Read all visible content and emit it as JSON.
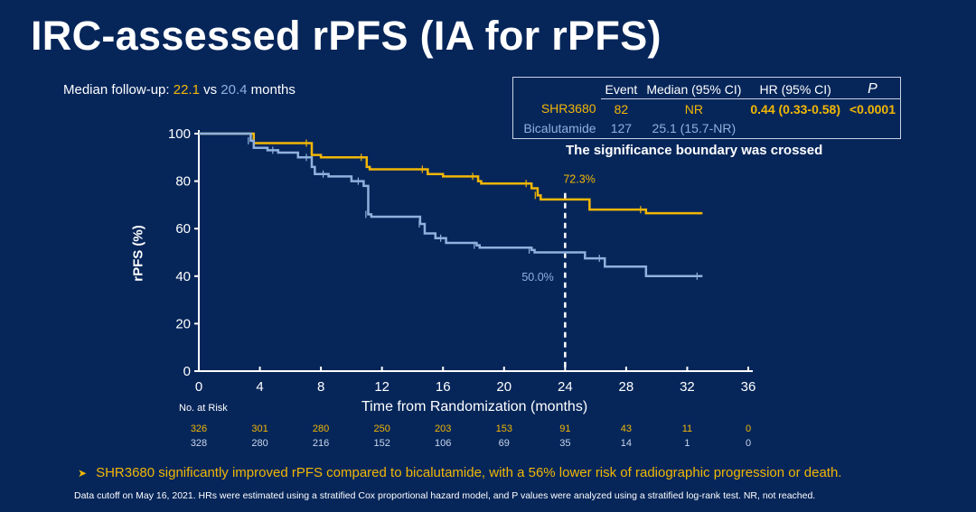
{
  "title": "IRC-assessed rPFS (IA for rPFS)",
  "followup": {
    "prefix": "Median follow-up:",
    "shr": "22.1",
    "vs": "vs",
    "bic": "20.4",
    "suffix": "months"
  },
  "table": {
    "headers": [
      "",
      "Event",
      "Median (95% CI)",
      "HR (95% CI)",
      "P"
    ],
    "rows": [
      {
        "arm": "SHR3680",
        "event": "82",
        "median": "NR",
        "hr": "0.44 (0.33-0.58)",
        "p": "<0.0001"
      },
      {
        "arm": "Bicalutamide",
        "event": "127",
        "median": "25.1 (15.7-NR)",
        "hr": "",
        "p": ""
      }
    ]
  },
  "boundary_note": "The significance boundary was crossed",
  "colors": {
    "background": "#06265a",
    "shr3680": "#f2b705",
    "bicalutamide": "#8fb1dd"
  },
  "chart_data": {
    "type": "line",
    "subtype": "kaplan-meier step",
    "xlabel": "Time from Randomization (months)",
    "ylabel": "rPFS (%)",
    "xlim": [
      0,
      36
    ],
    "ylim": [
      0,
      100
    ],
    "xticks": [
      "0",
      "4",
      "8",
      "12",
      "16",
      "20",
      "24",
      "28",
      "32",
      "36"
    ],
    "yticks": [
      "0",
      "20",
      "40",
      "60",
      "80",
      "100"
    ],
    "grid": false,
    "reference_line": {
      "x": 24,
      "style": "dashed"
    },
    "annotations": [
      {
        "text": "72.3%",
        "series": "SHR3680"
      },
      {
        "text": "50.0%",
        "series": "Bicalutamide"
      }
    ],
    "series": [
      {
        "name": "SHR3680",
        "steps": [
          [
            0,
            100
          ],
          [
            3.6,
            96
          ],
          [
            7.4,
            91
          ],
          [
            8,
            90
          ],
          [
            11,
            86
          ],
          [
            11.2,
            85
          ],
          [
            15,
            83
          ],
          [
            16,
            82
          ],
          [
            18.3,
            80
          ],
          [
            18.5,
            79
          ],
          [
            21.8,
            77
          ],
          [
            22.2,
            74
          ],
          [
            22.4,
            72.3
          ],
          [
            25.6,
            68
          ],
          [
            29.3,
            66.5
          ],
          [
            33,
            66.5
          ]
        ]
      },
      {
        "name": "Bicalutamide",
        "steps": [
          [
            0,
            100
          ],
          [
            3.4,
            97
          ],
          [
            3.6,
            94
          ],
          [
            4.5,
            93
          ],
          [
            5.2,
            92
          ],
          [
            6.5,
            90
          ],
          [
            7.4,
            86
          ],
          [
            7.6,
            83
          ],
          [
            8.5,
            82
          ],
          [
            10,
            80
          ],
          [
            10.8,
            78
          ],
          [
            11.1,
            66
          ],
          [
            11.3,
            65
          ],
          [
            14.5,
            62
          ],
          [
            14.8,
            58
          ],
          [
            15.5,
            56
          ],
          [
            16.2,
            54
          ],
          [
            18.2,
            53
          ],
          [
            18.4,
            52
          ],
          [
            21.8,
            51
          ],
          [
            22,
            50
          ],
          [
            25.3,
            47.5
          ],
          [
            26.6,
            44
          ],
          [
            29.3,
            40
          ],
          [
            33,
            40
          ]
        ]
      }
    ]
  },
  "risk": {
    "label": "No. at Risk",
    "shr3680": [
      "326",
      "301",
      "280",
      "250",
      "203",
      "153",
      "91",
      "43",
      "11",
      "0"
    ],
    "bicalutamide": [
      "328",
      "280",
      "216",
      "152",
      "106",
      "69",
      "35",
      "14",
      "1",
      "0"
    ]
  },
  "bullet": "SHR3680 significantly improved rPFS compared to bicalutamide, with a 56% lower risk of radiographic progression or death.",
  "bullet_icon": "arrowhead-bullet",
  "footnote": "Data cutoff on May 16, 2021. HRs were estimated using a stratified Cox proportional hazard model, and P values were analyzed using a stratified log-rank test. NR, not reached."
}
